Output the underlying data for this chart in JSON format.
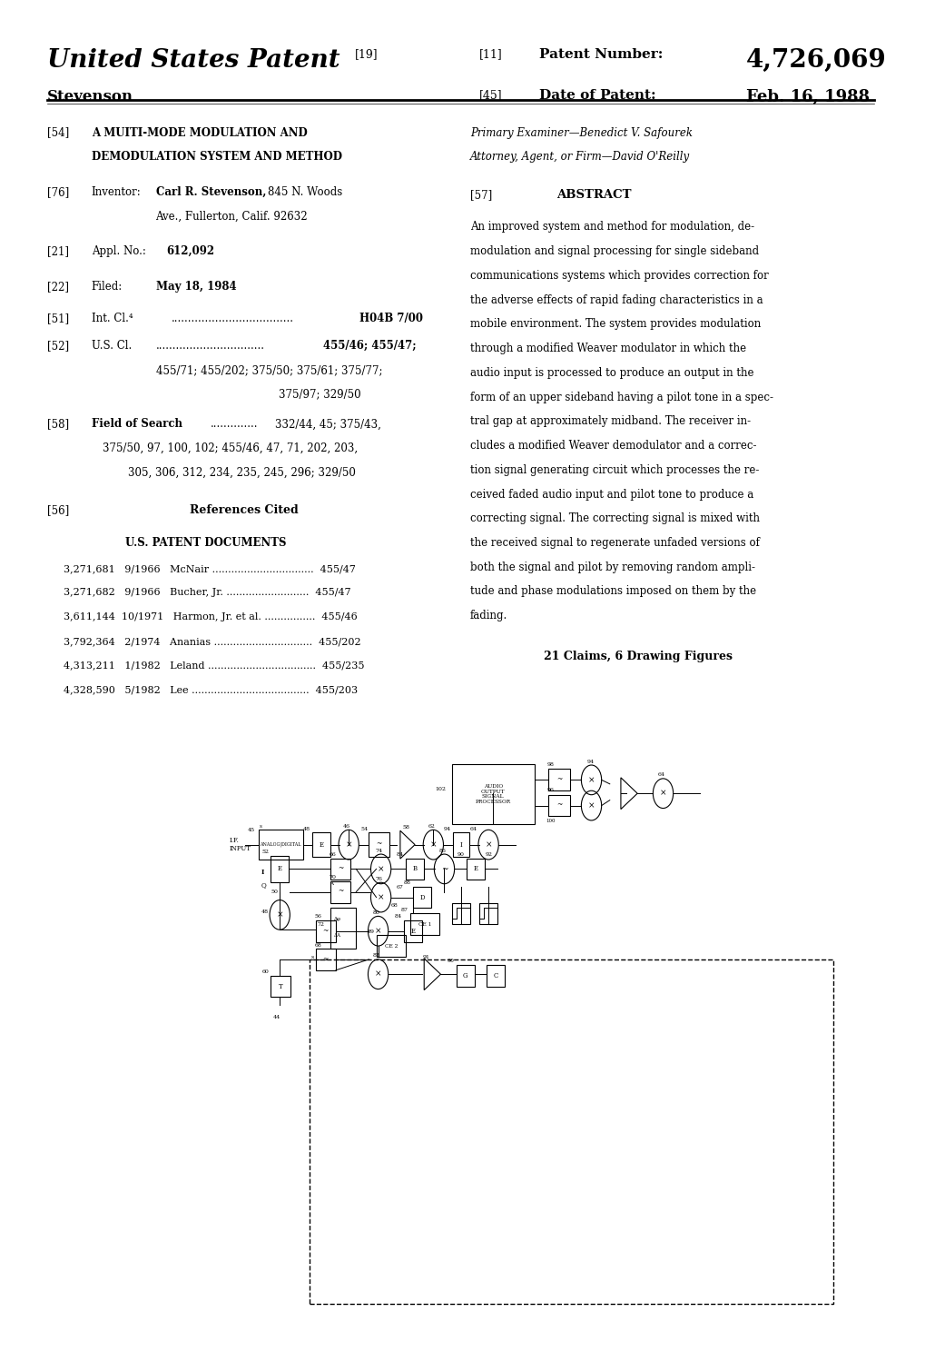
{
  "background_color": "#ffffff",
  "page_width": 10.2,
  "page_height": 14.88,
  "header": {
    "left_title": "United States Patent",
    "left_bracket_19": "[19]",
    "left_name": "Stevenson",
    "right_11": "[11]",
    "right_patent_label": "Patent Number:",
    "right_patent_number": "4,726,069",
    "right_45": "[45]",
    "right_date_label": "Date of Patent:",
    "right_date_value": "Feb. 16, 1988"
  },
  "patent_refs": [
    "3,271,681   9/1966   McNair ................................  455/47",
    "3,271,682   9/1966   Bucher, Jr. ..........................  455/47",
    "3,611,144  10/1971   Harmon, Jr. et al. ................  455/46",
    "3,792,364   2/1974   Ananias ...............................  455/202",
    "4,313,211   1/1982   Leland ..................................  455/235",
    "4,328,590   5/1982   Lee .....................................  455/203"
  ],
  "right_col": {
    "primary_examiner_label": "Primary Examiner",
    "primary_examiner": "Benedict V. Safourek",
    "attorney_label": "Attorney, Agent, or Firm",
    "attorney": "David O'Reilly",
    "abstract_tag": "[57]",
    "abstract_title": "ABSTRACT",
    "abstract_text": "An improved system and method for modulation, de-\nmodulation and signal processing for single sideband\ncommunications systems which provides correction for\nthe adverse effects of rapid fading characteristics in a\nmobile environment. The system provides modulation\nthrough a modified Weaver modulator in which the\naudio input is processed to produce an output in the\nform of an upper sideband having a pilot tone in a spec-\ntral gap at approximately midband. The receiver in-\ncludes a modified Weaver demodulator and a correc-\ntion signal generating circuit which processes the re-\nceived faded audio input and pilot tone to produce a\ncorrecting signal. The correcting signal is mixed with\nthe received signal to regenerate unfaded versions of\nboth the signal and pilot by removing random ampli-\ntude and phase modulations imposed on them by the\nfading.",
    "claims": "21 Claims, 6 Drawing Figures"
  }
}
